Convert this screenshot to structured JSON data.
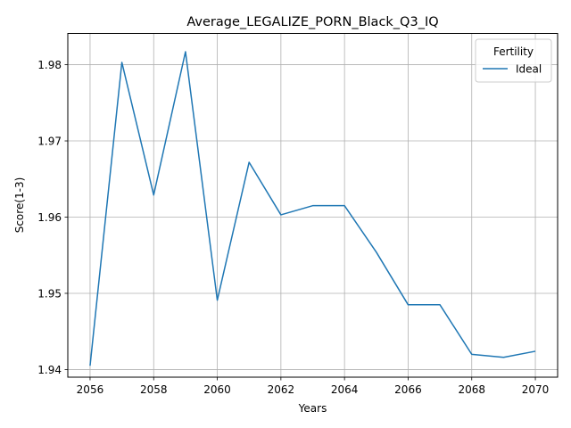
{
  "chart_data": {
    "type": "line",
    "title": "Average_LEGALIZE_PORN_Black_Q3_IQ",
    "xlabel": "Years",
    "ylabel": "Score(1-3)",
    "x": [
      2056,
      2057,
      2058,
      2059,
      2060,
      2061,
      2062,
      2063,
      2064,
      2065,
      2066,
      2067,
      2068,
      2069,
      2070
    ],
    "series": [
      {
        "name": "Ideal",
        "color": "#1f77b4",
        "values": [
          1.9405,
          1.9803,
          1.9629,
          1.9817,
          1.9491,
          1.9672,
          1.9603,
          1.9615,
          1.9615,
          1.9554,
          1.9485,
          1.9485,
          1.942,
          1.9416,
          1.9424
        ]
      }
    ],
    "xlim": [
      2055.3,
      2070.7
    ],
    "ylim": [
      1.939,
      1.9841
    ],
    "xticks": [
      2056,
      2058,
      2060,
      2062,
      2064,
      2066,
      2068,
      2070
    ],
    "yticks": [
      1.94,
      1.95,
      1.96,
      1.97,
      1.98
    ],
    "ytick_labels": [
      "1.94",
      "1.95",
      "1.96",
      "1.97",
      "1.98"
    ],
    "grid": true,
    "legend": {
      "title": "Fertility",
      "placement": "top-right"
    }
  }
}
